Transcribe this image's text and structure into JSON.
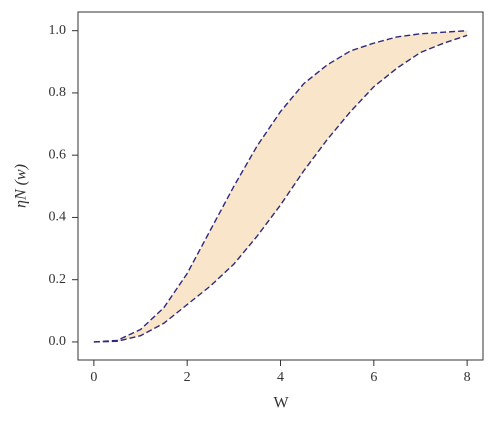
{
  "chart_data": {
    "type": "band",
    "xlabel": "W",
    "ylabel": "ηN (w)",
    "x": [
      0,
      0.5,
      1,
      1.5,
      2,
      2.5,
      3,
      3.5,
      4,
      4.5,
      5,
      5.5,
      6,
      6.5,
      7,
      7.5,
      8
    ],
    "series": [
      {
        "color": "#2e2a7a",
        "values": [
          0,
          0.005,
          0.04,
          0.11,
          0.22,
          0.36,
          0.5,
          0.63,
          0.74,
          0.83,
          0.89,
          0.935,
          0.96,
          0.98,
          0.99,
          0.995,
          1.0
        ]
      },
      {
        "color": "#2e2a7a",
        "values": [
          0,
          0.002,
          0.02,
          0.06,
          0.12,
          0.18,
          0.25,
          0.34,
          0.44,
          0.55,
          0.65,
          0.74,
          0.82,
          0.88,
          0.93,
          0.96,
          0.985
        ]
      }
    ],
    "fill": "#f9e5c9",
    "dashed": true,
    "xlim": [
      -0.34,
      8.34
    ],
    "ylim": [
      -0.058,
      1.06
    ],
    "xticks": [
      0,
      2,
      4,
      6,
      8
    ],
    "yticks": [
      {
        "value": 0,
        "label": "0.0"
      },
      0.2,
      0.4,
      0.6,
      0.8,
      {
        "value": 1,
        "label": "1.0"
      }
    ]
  }
}
